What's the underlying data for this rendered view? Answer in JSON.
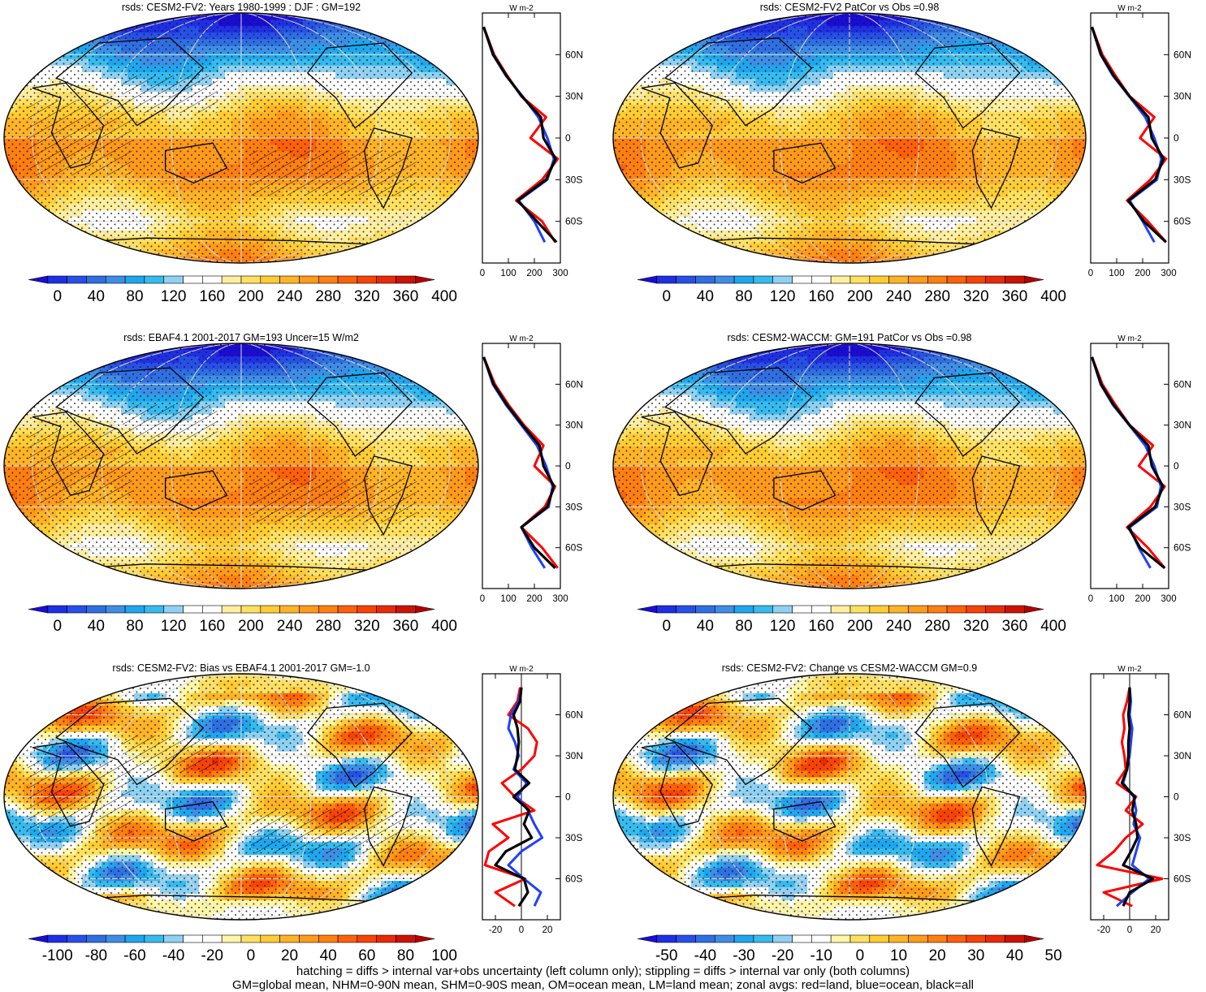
{
  "chart_data": [
    {
      "type": "heatmap",
      "title": "rsds: CESM2-FV2: Years 1980-1999 : DJF : GM=192",
      "colorbar_ticks": [
        "0",
        "40",
        "80",
        "120",
        "160",
        "200",
        "240",
        "280",
        "320",
        "360",
        "400"
      ],
      "colorbar_range": [
        -20,
        420
      ],
      "palette": "absolute",
      "hatching": true,
      "stippling": true,
      "zonal_profile": {
        "xlim": [
          0,
          300
        ],
        "x_ticks": [
          "0",
          "100",
          "200",
          "300"
        ],
        "ylim": [
          -90,
          90
        ],
        "y_ticks": [
          "60N",
          "30N",
          "0",
          "30S",
          "60S"
        ],
        "unit": "W m-2",
        "lat": [
          80,
          60,
          45,
          30,
          15,
          0,
          -15,
          -30,
          -45,
          -60,
          -75
        ],
        "land": [
          5,
          45,
          95,
          150,
          245,
          185,
          290,
          230,
          130,
          230,
          280
        ],
        "ocean": [
          5,
          40,
          90,
          155,
          215,
          250,
          275,
          250,
          140,
          200,
          240
        ],
        "all": [
          5,
          42,
          92,
          152,
          225,
          235,
          282,
          245,
          135,
          210,
          285
        ]
      }
    },
    {
      "type": "heatmap",
      "title": "rsds: CESM2-FV2 PatCor vs Obs =0.98",
      "colorbar_ticks": [
        "0",
        "40",
        "80",
        "120",
        "160",
        "200",
        "240",
        "280",
        "320",
        "360",
        "400"
      ],
      "colorbar_range": [
        -20,
        420
      ],
      "palette": "absolute",
      "hatching": false,
      "stippling": true,
      "zonal_profile": {
        "xlim": [
          0,
          300
        ],
        "x_ticks": [
          "0",
          "100",
          "200",
          "300"
        ],
        "ylim": [
          -90,
          90
        ],
        "y_ticks": [
          "60N",
          "30N",
          "0",
          "30S",
          "60S"
        ],
        "unit": "W m-2",
        "lat": [
          80,
          60,
          45,
          30,
          15,
          0,
          -15,
          -30,
          -45,
          -60,
          -75
        ],
        "land": [
          5,
          45,
          95,
          150,
          245,
          190,
          290,
          230,
          140,
          220,
          290
        ],
        "ocean": [
          5,
          38,
          85,
          148,
          210,
          245,
          272,
          255,
          150,
          200,
          245
        ],
        "all": [
          5,
          40,
          88,
          150,
          222,
          235,
          280,
          248,
          145,
          205,
          290
        ]
      }
    },
    {
      "type": "heatmap",
      "title": "rsds: EBAF4.1 2001-2017 GM=193 Uncer=15 W/m2",
      "colorbar_ticks": [
        "0",
        "40",
        "80",
        "120",
        "160",
        "200",
        "240",
        "280",
        "320",
        "360",
        "400"
      ],
      "colorbar_range": [
        -20,
        420
      ],
      "palette": "absolute",
      "hatching": true,
      "stippling": true,
      "zonal_profile": {
        "xlim": [
          0,
          300
        ],
        "x_ticks": [
          "0",
          "100",
          "200",
          "300"
        ],
        "ylim": [
          -90,
          90
        ],
        "y_ticks": [
          "60N",
          "30N",
          "0",
          "30S",
          "60S"
        ],
        "unit": "W m-2",
        "lat": [
          80,
          60,
          45,
          30,
          15,
          0,
          -15,
          -30,
          -45,
          -60,
          -75
        ],
        "land": [
          5,
          48,
          100,
          160,
          235,
          200,
          280,
          240,
          150,
          230,
          290
        ],
        "ocean": [
          5,
          40,
          90,
          150,
          210,
          245,
          270,
          255,
          150,
          190,
          240
        ],
        "all": [
          5,
          43,
          94,
          155,
          220,
          235,
          275,
          250,
          150,
          200,
          280
        ]
      }
    },
    {
      "type": "heatmap",
      "title": "rsds: CESM2-WACCM: GM=191 PatCor vs Obs =0.98",
      "colorbar_ticks": [
        "0",
        "40",
        "80",
        "120",
        "160",
        "200",
        "240",
        "280",
        "320",
        "360",
        "400"
      ],
      "colorbar_range": [
        -20,
        420
      ],
      "palette": "absolute",
      "hatching": false,
      "stippling": true,
      "zonal_profile": {
        "xlim": [
          0,
          300
        ],
        "x_ticks": [
          "0",
          "100",
          "200",
          "300"
        ],
        "ylim": [
          -90,
          90
        ],
        "y_ticks": [
          "60N",
          "30N",
          "0",
          "30S",
          "60S"
        ],
        "unit": "W m-2",
        "lat": [
          80,
          60,
          45,
          30,
          15,
          0,
          -15,
          -30,
          -45,
          -60,
          -75
        ],
        "land": [
          5,
          45,
          95,
          150,
          240,
          185,
          285,
          230,
          140,
          220,
          285
        ],
        "ocean": [
          5,
          38,
          85,
          148,
          210,
          245,
          270,
          255,
          150,
          185,
          230
        ],
        "all": [
          5,
          40,
          88,
          150,
          222,
          235,
          278,
          248,
          145,
          190,
          285
        ]
      }
    },
    {
      "type": "heatmap",
      "title": "rsds: CESM2-FV2: Bias vs EBAF4.1 2001-2017 GM=-1.0",
      "colorbar_ticks": [
        "-100",
        "-80",
        "-60",
        "-40",
        "-20",
        "0",
        "20",
        "40",
        "60",
        "80",
        "100"
      ],
      "colorbar_range": [
        -110,
        110
      ],
      "palette": "difference",
      "hatching": true,
      "stippling": true,
      "zonal_profile": {
        "xlim": [
          -30,
          30
        ],
        "x_ticks": [
          "-20",
          "0",
          "20"
        ],
        "ylim": [
          -90,
          90
        ],
        "y_ticks": [
          "60N",
          "30N",
          "0",
          "30S",
          "60S"
        ],
        "unit": "W m-2",
        "lat": [
          80,
          70,
          60,
          50,
          40,
          30,
          20,
          10,
          0,
          -10,
          -20,
          -30,
          -40,
          -50,
          -60,
          -70,
          -80
        ],
        "land": [
          -1,
          -3,
          -10,
          5,
          12,
          10,
          0,
          -15,
          -5,
          10,
          -22,
          -10,
          -25,
          -28,
          3,
          -20,
          -5
        ],
        "ocean": [
          0,
          -2,
          -8,
          -10,
          -5,
          -2,
          -6,
          4,
          -3,
          5,
          10,
          16,
          0,
          -10,
          2,
          15,
          10
        ],
        "all": [
          0,
          -1,
          -6,
          -3,
          -2,
          -3,
          -5,
          6,
          -6,
          6,
          2,
          8,
          -12,
          -20,
          2,
          5,
          -2
        ]
      }
    },
    {
      "type": "heatmap",
      "title": "rsds: CESM2-FV2: Change vs CESM2-WACCM GM=0.9",
      "colorbar_ticks": [
        "-50",
        "-40",
        "-30",
        "-20",
        "-10",
        "0",
        "10",
        "20",
        "30",
        "40",
        "50"
      ],
      "colorbar_range": [
        -55,
        55
      ],
      "palette": "difference",
      "hatching": false,
      "stippling": true,
      "zonal_profile": {
        "xlim": [
          -30,
          30
        ],
        "x_ticks": [
          "-20",
          "0",
          "20"
        ],
        "ylim": [
          -90,
          90
        ],
        "y_ticks": [
          "60N",
          "30N",
          "0",
          "30S",
          "60S"
        ],
        "unit": "W m-2",
        "lat": [
          80,
          70,
          60,
          50,
          40,
          30,
          20,
          10,
          0,
          -10,
          -20,
          -30,
          -40,
          -50,
          -60,
          -70,
          -80
        ],
        "land": [
          0,
          -2,
          -5,
          -4,
          -6,
          -4,
          -3,
          -10,
          5,
          -3,
          10,
          -3,
          -12,
          -25,
          25,
          -20,
          2
        ],
        "ocean": [
          0,
          1,
          0,
          2,
          1,
          0,
          -2,
          -5,
          3,
          5,
          3,
          8,
          5,
          2,
          15,
          2,
          -10
        ],
        "all": [
          0,
          0,
          -1,
          0,
          -1,
          -1,
          -2,
          -6,
          4,
          2,
          5,
          6,
          1,
          -5,
          18,
          0,
          -5
        ]
      }
    }
  ],
  "footer": {
    "line1": "hatching = diffs > internal var+obs uncertainty (left column only); stippling = diffs > internal var only (both columns)",
    "line2": "GM=global mean, NHM=0-90N mean, SHM=0-90S mean, OM=ocean mean, LM=land mean; zonal avgs: red=land, blue=ocean, black=all"
  },
  "colors": {
    "land_line": "#ff0000",
    "ocean_line": "#2040ff",
    "all_line": "#000000",
    "coast": "#000000",
    "grid": "#d8d8d8",
    "stipple": "#1a1a1a"
  },
  "icons": {
    "panel": "world-map-panel",
    "profile": "zonal-profile-panel"
  }
}
